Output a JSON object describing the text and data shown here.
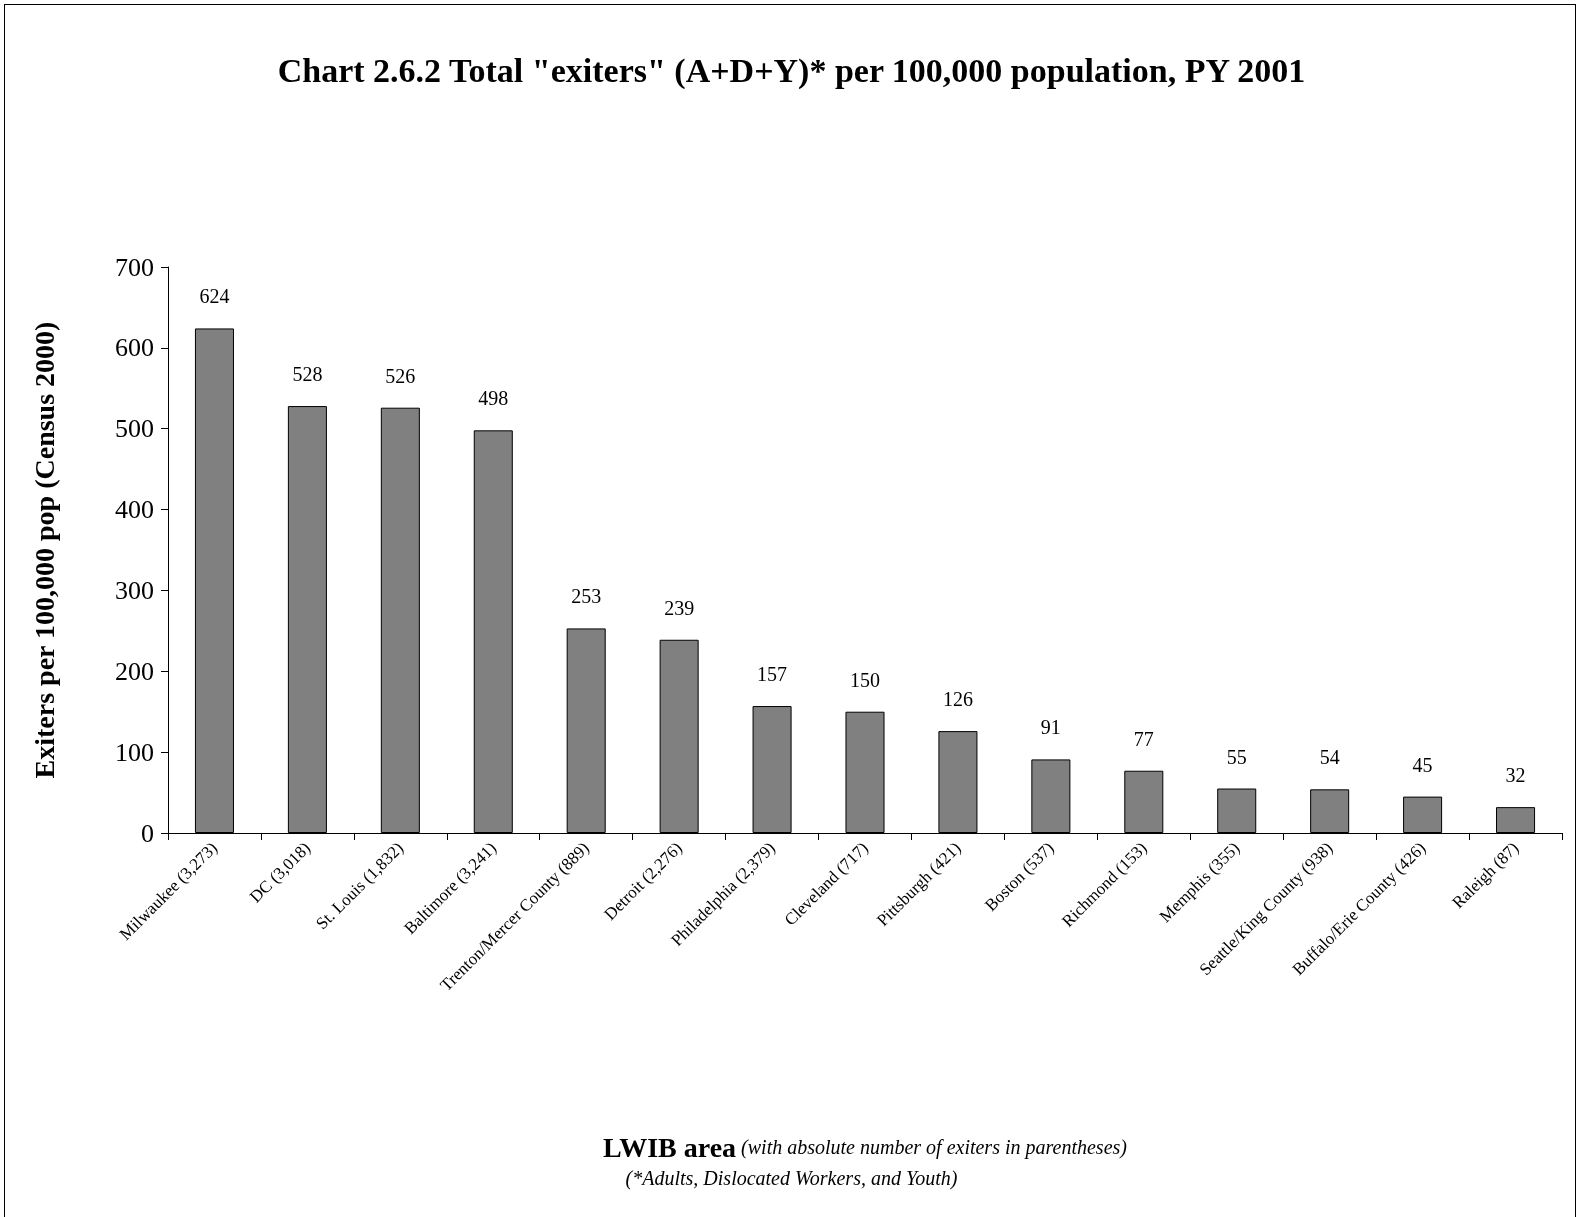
{
  "chart_data": {
    "type": "bar",
    "title": "Chart 2.6.2 Total \"exiters\" (A+D+Y)* per 100,000 population, PY 2001",
    "xlabel": "LWIB area (with absolute number of exiters in parentheses)",
    "ylabel": "Exiters per 100,000 pop (Census 2000)",
    "annotations": [
      "(*Adults, Dislocated Workers, and Youth)"
    ],
    "categories": [
      "Milwaukee (3,273)",
      "DC (3,018)",
      "St. Louis (1,832)",
      "Baltimore (3,241)",
      "Trenton/Mercer County (889)",
      "Detroit (2,276)",
      "Philadelphia (2,379)",
      "Cleveland (717)",
      "Pittsburgh (421)",
      "Boston (537)",
      "Richmond (153)",
      "Memphis (355)",
      "Seattle/King County (938)",
      "Buffalo/Erie County (426)",
      "Raleigh (87)"
    ],
    "values": [
      624,
      528,
      526,
      498,
      253,
      239,
      157,
      150,
      126,
      91,
      77,
      55,
      54,
      45,
      32
    ],
    "color": "#808080",
    "ylim": [
      0,
      700
    ],
    "yticks": [
      0,
      100,
      200,
      300,
      400,
      500,
      600,
      700
    ],
    "grid": false,
    "data_labels": true
  }
}
